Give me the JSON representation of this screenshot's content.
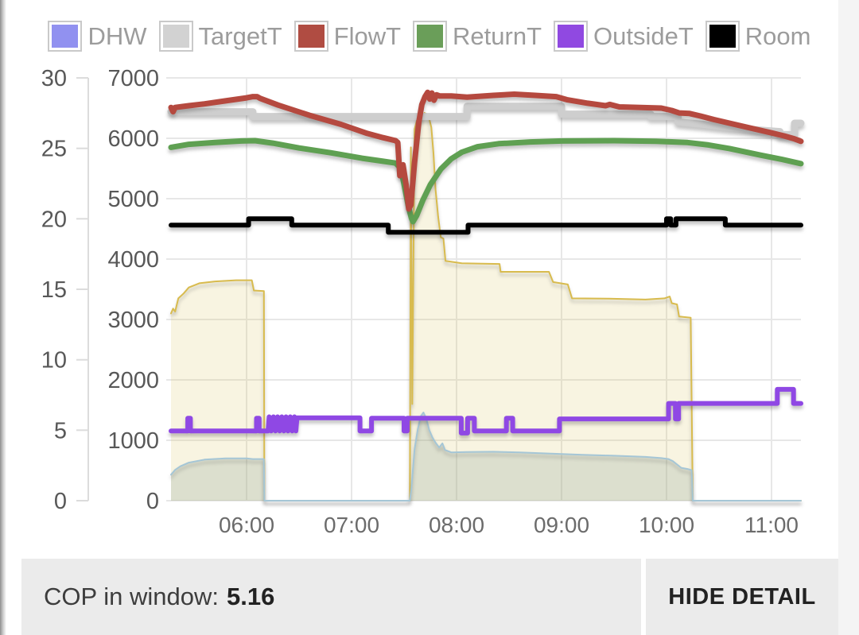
{
  "page": {
    "bg": "#ffffff",
    "left_strip_color": "#8f8f8f",
    "right_gutter_color": "#f4f4f4"
  },
  "legend": {
    "items": [
      {
        "label": "DHW",
        "color": "#9191f0"
      },
      {
        "label": "TargetT",
        "color": "#d2d2d2"
      },
      {
        "label": "FlowT",
        "color": "#b04c42"
      },
      {
        "label": "ReturnT",
        "color": "#6a9e59"
      },
      {
        "label": "OutsideT",
        "color": "#9049e1"
      },
      {
        "label": "Room",
        "color": "#000000"
      }
    ]
  },
  "footer": {
    "cop_label": "COP in window:",
    "cop_value": "5.16",
    "hide_detail_label": "HIDE DETAIL"
  },
  "chart_data": {
    "type": "line",
    "grid": true,
    "colors": {
      "grid": "#e7e7e7",
      "axis_line": "#dcdcdc",
      "tick_text": "#585858",
      "x_tick_text": "#6b6b6b"
    },
    "x_axis": {
      "tick_labels": [
        "06:00",
        "07:00",
        "08:00",
        "09:00",
        "10:00",
        "11:00"
      ],
      "tick_hours": [
        6,
        7,
        8,
        9,
        10,
        11
      ],
      "range_hours": [
        5.28,
        11.28
      ]
    },
    "y_axis_temp": {
      "tick_labels": [
        "0",
        "5",
        "10",
        "15",
        "20",
        "25",
        "30"
      ],
      "ticks": [
        0,
        5,
        10,
        15,
        20,
        25,
        30
      ],
      "range": [
        0,
        30
      ]
    },
    "y_axis_power": {
      "tick_labels": [
        "0",
        "1000",
        "2000",
        "3000",
        "4000",
        "5000",
        "6000",
        "7000"
      ],
      "ticks": [
        0,
        1000,
        2000,
        3000,
        4000,
        5000,
        6000,
        7000
      ],
      "range": [
        0,
        7000
      ]
    },
    "series": [
      {
        "name": "heat_output_area",
        "axis": "power",
        "kind": "area",
        "color": "#d8bb4e",
        "fill": "rgba(216,187,78,0.17)",
        "width": 2,
        "points": [
          [
            5.28,
            3100
          ],
          [
            5.3,
            3180
          ],
          [
            5.32,
            3130
          ],
          [
            5.35,
            3350
          ],
          [
            5.4,
            3430
          ],
          [
            5.45,
            3530
          ],
          [
            5.55,
            3600
          ],
          [
            5.7,
            3630
          ],
          [
            5.9,
            3650
          ],
          [
            6.05,
            3650
          ],
          [
            6.07,
            3480
          ],
          [
            6.165,
            3470
          ],
          [
            6.17,
            0
          ],
          [
            7.555,
            0
          ],
          [
            7.565,
            5850
          ],
          [
            7.578,
            1600
          ],
          [
            7.6,
            6150
          ],
          [
            7.63,
            6350
          ],
          [
            7.66,
            6290
          ],
          [
            7.695,
            6420
          ],
          [
            7.73,
            6390
          ],
          [
            7.76,
            6180
          ],
          [
            7.78,
            5750
          ],
          [
            7.8,
            5150
          ],
          [
            7.825,
            4700
          ],
          [
            7.85,
            4360
          ],
          [
            7.875,
            4340
          ],
          [
            7.895,
            3970
          ],
          [
            8.05,
            3930
          ],
          [
            8.25,
            3925
          ],
          [
            8.41,
            3920
          ],
          [
            8.42,
            3790
          ],
          [
            8.88,
            3790
          ],
          [
            8.92,
            3620
          ],
          [
            9.06,
            3580
          ],
          [
            9.1,
            3350
          ],
          [
            9.45,
            3345
          ],
          [
            9.8,
            3330
          ],
          [
            9.98,
            3350
          ],
          [
            10.03,
            3380
          ],
          [
            10.05,
            3270
          ],
          [
            10.1,
            3250
          ],
          [
            10.12,
            3050
          ],
          [
            10.23,
            3030
          ],
          [
            10.25,
            0
          ],
          [
            11.28,
            0
          ]
        ]
      },
      {
        "name": "electric_input_area",
        "axis": "power",
        "kind": "area",
        "color": "#a5c6d6",
        "fill": "rgba(125,150,140,0.22)",
        "width": 2,
        "points": [
          [
            5.28,
            430
          ],
          [
            5.32,
            510
          ],
          [
            5.37,
            570
          ],
          [
            5.45,
            630
          ],
          [
            5.6,
            680
          ],
          [
            5.8,
            700
          ],
          [
            6.0,
            700
          ],
          [
            6.06,
            690
          ],
          [
            6.165,
            690
          ],
          [
            6.17,
            0
          ],
          [
            7.555,
            0
          ],
          [
            7.57,
            200
          ],
          [
            7.6,
            850
          ],
          [
            7.63,
            1180
          ],
          [
            7.66,
            1400
          ],
          [
            7.685,
            1460
          ],
          [
            7.71,
            1370
          ],
          [
            7.74,
            1170
          ],
          [
            7.77,
            1050
          ],
          [
            7.8,
            960
          ],
          [
            7.835,
            880
          ],
          [
            7.865,
            950
          ],
          [
            7.89,
            840
          ],
          [
            7.95,
            800
          ],
          [
            8.1,
            805
          ],
          [
            8.35,
            810
          ],
          [
            8.6,
            800
          ],
          [
            8.9,
            780
          ],
          [
            9.2,
            760
          ],
          [
            9.5,
            745
          ],
          [
            9.8,
            725
          ],
          [
            9.95,
            705
          ],
          [
            10.02,
            690
          ],
          [
            10.06,
            655
          ],
          [
            10.1,
            600
          ],
          [
            10.14,
            545
          ],
          [
            10.2,
            525
          ],
          [
            10.24,
            505
          ],
          [
            10.25,
            0
          ],
          [
            11.28,
            0
          ]
        ]
      },
      {
        "name": "TargetT",
        "axis": "power",
        "kind": "line",
        "color": "#cecece",
        "width": 9,
        "points": [
          [
            5.28,
            6440
          ],
          [
            6.06,
            6440
          ],
          [
            6.06,
            6360
          ],
          [
            8.1,
            6360
          ],
          [
            8.1,
            6530
          ],
          [
            9.0,
            6530
          ],
          [
            9.0,
            6400
          ],
          [
            9.85,
            6400
          ],
          [
            9.85,
            6360
          ],
          [
            10.11,
            6360
          ],
          [
            10.11,
            6270
          ],
          [
            10.35,
            6230
          ],
          [
            10.6,
            6180
          ],
          [
            10.85,
            6140
          ],
          [
            11.08,
            6110
          ],
          [
            11.08,
            6060
          ],
          [
            11.22,
            6060
          ],
          [
            11.22,
            6250
          ],
          [
            11.28,
            6250
          ]
        ]
      },
      {
        "name": "ReturnT",
        "axis": "power",
        "kind": "line",
        "color": "#5fa052",
        "width": 7,
        "points": [
          [
            5.28,
            5850
          ],
          [
            5.45,
            5900
          ],
          [
            5.7,
            5930
          ],
          [
            5.95,
            5955
          ],
          [
            6.08,
            5960
          ],
          [
            6.25,
            5920
          ],
          [
            6.5,
            5840
          ],
          [
            6.8,
            5760
          ],
          [
            7.1,
            5670
          ],
          [
            7.3,
            5620
          ],
          [
            7.42,
            5590
          ],
          [
            7.47,
            5500
          ],
          [
            7.51,
            5150
          ],
          [
            7.54,
            4880
          ],
          [
            7.57,
            4680
          ],
          [
            7.585,
            4620
          ],
          [
            7.62,
            4720
          ],
          [
            7.68,
            4980
          ],
          [
            7.75,
            5230
          ],
          [
            7.85,
            5490
          ],
          [
            7.95,
            5660
          ],
          [
            8.05,
            5770
          ],
          [
            8.2,
            5860
          ],
          [
            8.4,
            5910
          ],
          [
            8.7,
            5940
          ],
          [
            9.0,
            5955
          ],
          [
            9.5,
            5960
          ],
          [
            9.9,
            5950
          ],
          [
            10.2,
            5930
          ],
          [
            10.4,
            5890
          ],
          [
            10.6,
            5830
          ],
          [
            10.9,
            5720
          ],
          [
            11.1,
            5650
          ],
          [
            11.28,
            5580
          ]
        ]
      },
      {
        "name": "FlowT",
        "axis": "power",
        "kind": "line",
        "color": "#b5493f",
        "width": 7,
        "points": [
          [
            5.28,
            6510
          ],
          [
            5.3,
            6440
          ],
          [
            5.32,
            6510
          ],
          [
            5.45,
            6540
          ],
          [
            5.6,
            6570
          ],
          [
            5.8,
            6620
          ],
          [
            6.0,
            6670
          ],
          [
            6.06,
            6690
          ],
          [
            6.1,
            6690
          ],
          [
            6.13,
            6660
          ],
          [
            6.3,
            6550
          ],
          [
            6.6,
            6380
          ],
          [
            6.9,
            6230
          ],
          [
            7.15,
            6080
          ],
          [
            7.3,
            6010
          ],
          [
            7.42,
            5960
          ],
          [
            7.44,
            5930
          ],
          [
            7.46,
            5380
          ],
          [
            7.49,
            5560
          ],
          [
            7.52,
            5230
          ],
          [
            7.545,
            4830
          ],
          [
            7.565,
            4900
          ],
          [
            7.6,
            5600
          ],
          [
            7.64,
            6260
          ],
          [
            7.67,
            6560
          ],
          [
            7.7,
            6690
          ],
          [
            7.725,
            6760
          ],
          [
            7.745,
            6650
          ],
          [
            7.765,
            6750
          ],
          [
            7.785,
            6630
          ],
          [
            7.81,
            6720
          ],
          [
            7.84,
            6700
          ],
          [
            7.95,
            6700
          ],
          [
            8.1,
            6680
          ],
          [
            8.35,
            6710
          ],
          [
            8.55,
            6730
          ],
          [
            8.75,
            6710
          ],
          [
            8.95,
            6690
          ],
          [
            9.05,
            6640
          ],
          [
            9.25,
            6580
          ],
          [
            9.42,
            6540
          ],
          [
            9.46,
            6560
          ],
          [
            9.55,
            6520
          ],
          [
            9.75,
            6510
          ],
          [
            9.95,
            6500
          ],
          [
            10.05,
            6460
          ],
          [
            10.12,
            6420
          ],
          [
            10.22,
            6410
          ],
          [
            10.32,
            6370
          ],
          [
            10.45,
            6310
          ],
          [
            10.6,
            6250
          ],
          [
            10.8,
            6170
          ],
          [
            11.0,
            6090
          ],
          [
            11.12,
            6040
          ],
          [
            11.22,
            5990
          ],
          [
            11.28,
            5950
          ]
        ]
      },
      {
        "name": "Room",
        "axis": "temp",
        "kind": "line",
        "color": "#000000",
        "width": 6,
        "points": [
          [
            5.28,
            19.55
          ],
          [
            6.02,
            19.55
          ],
          [
            6.02,
            20.0
          ],
          [
            6.43,
            20.0
          ],
          [
            6.43,
            19.55
          ],
          [
            7.35,
            19.55
          ],
          [
            7.35,
            19.05
          ],
          [
            8.11,
            19.05
          ],
          [
            8.11,
            19.55
          ],
          [
            10.0,
            19.55
          ],
          [
            10.0,
            20.0
          ],
          [
            10.04,
            20.0
          ],
          [
            10.04,
            19.55
          ],
          [
            10.09,
            19.55
          ],
          [
            10.09,
            20.0
          ],
          [
            10.56,
            20.0
          ],
          [
            10.56,
            19.55
          ],
          [
            11.28,
            19.55
          ]
        ]
      },
      {
        "name": "OutsideT",
        "axis": "temp",
        "kind": "line",
        "color": "#8f48e4",
        "width": 6,
        "points": [
          [
            5.28,
            4.95
          ],
          [
            5.44,
            4.95
          ],
          [
            5.44,
            5.85
          ],
          [
            5.465,
            5.85
          ],
          [
            5.465,
            4.95
          ],
          [
            6.095,
            4.95
          ],
          [
            6.095,
            5.85
          ],
          [
            6.12,
            5.85
          ],
          [
            6.12,
            4.95
          ],
          [
            6.205,
            4.95
          ],
          [
            6.215,
            5.95
          ],
          [
            6.235,
            4.95
          ],
          [
            6.255,
            5.95
          ],
          [
            6.275,
            4.95
          ],
          [
            6.295,
            5.95
          ],
          [
            6.315,
            4.95
          ],
          [
            6.335,
            5.95
          ],
          [
            6.355,
            4.95
          ],
          [
            6.375,
            5.95
          ],
          [
            6.395,
            4.95
          ],
          [
            6.415,
            5.95
          ],
          [
            6.435,
            4.95
          ],
          [
            6.455,
            5.95
          ],
          [
            6.47,
            4.95
          ],
          [
            6.48,
            5.88
          ],
          [
            7.08,
            5.88
          ],
          [
            7.08,
            4.95
          ],
          [
            7.19,
            4.95
          ],
          [
            7.19,
            5.85
          ],
          [
            7.5,
            5.85
          ],
          [
            7.5,
            4.95
          ],
          [
            7.53,
            4.95
          ],
          [
            7.53,
            5.85
          ],
          [
            8.045,
            5.85
          ],
          [
            8.045,
            4.8
          ],
          [
            8.105,
            4.8
          ],
          [
            8.105,
            5.85
          ],
          [
            8.17,
            5.85
          ],
          [
            8.17,
            4.95
          ],
          [
            8.475,
            4.95
          ],
          [
            8.475,
            5.85
          ],
          [
            8.535,
            5.85
          ],
          [
            8.535,
            4.95
          ],
          [
            8.98,
            4.95
          ],
          [
            8.98,
            5.8
          ],
          [
            10.02,
            5.8
          ],
          [
            10.02,
            6.9
          ],
          [
            10.085,
            6.9
          ],
          [
            10.085,
            5.8
          ],
          [
            10.115,
            5.8
          ],
          [
            10.115,
            6.9
          ],
          [
            11.055,
            6.9
          ],
          [
            11.055,
            7.9
          ],
          [
            11.21,
            7.9
          ],
          [
            11.21,
            6.9
          ],
          [
            11.28,
            6.9
          ]
        ]
      }
    ]
  }
}
